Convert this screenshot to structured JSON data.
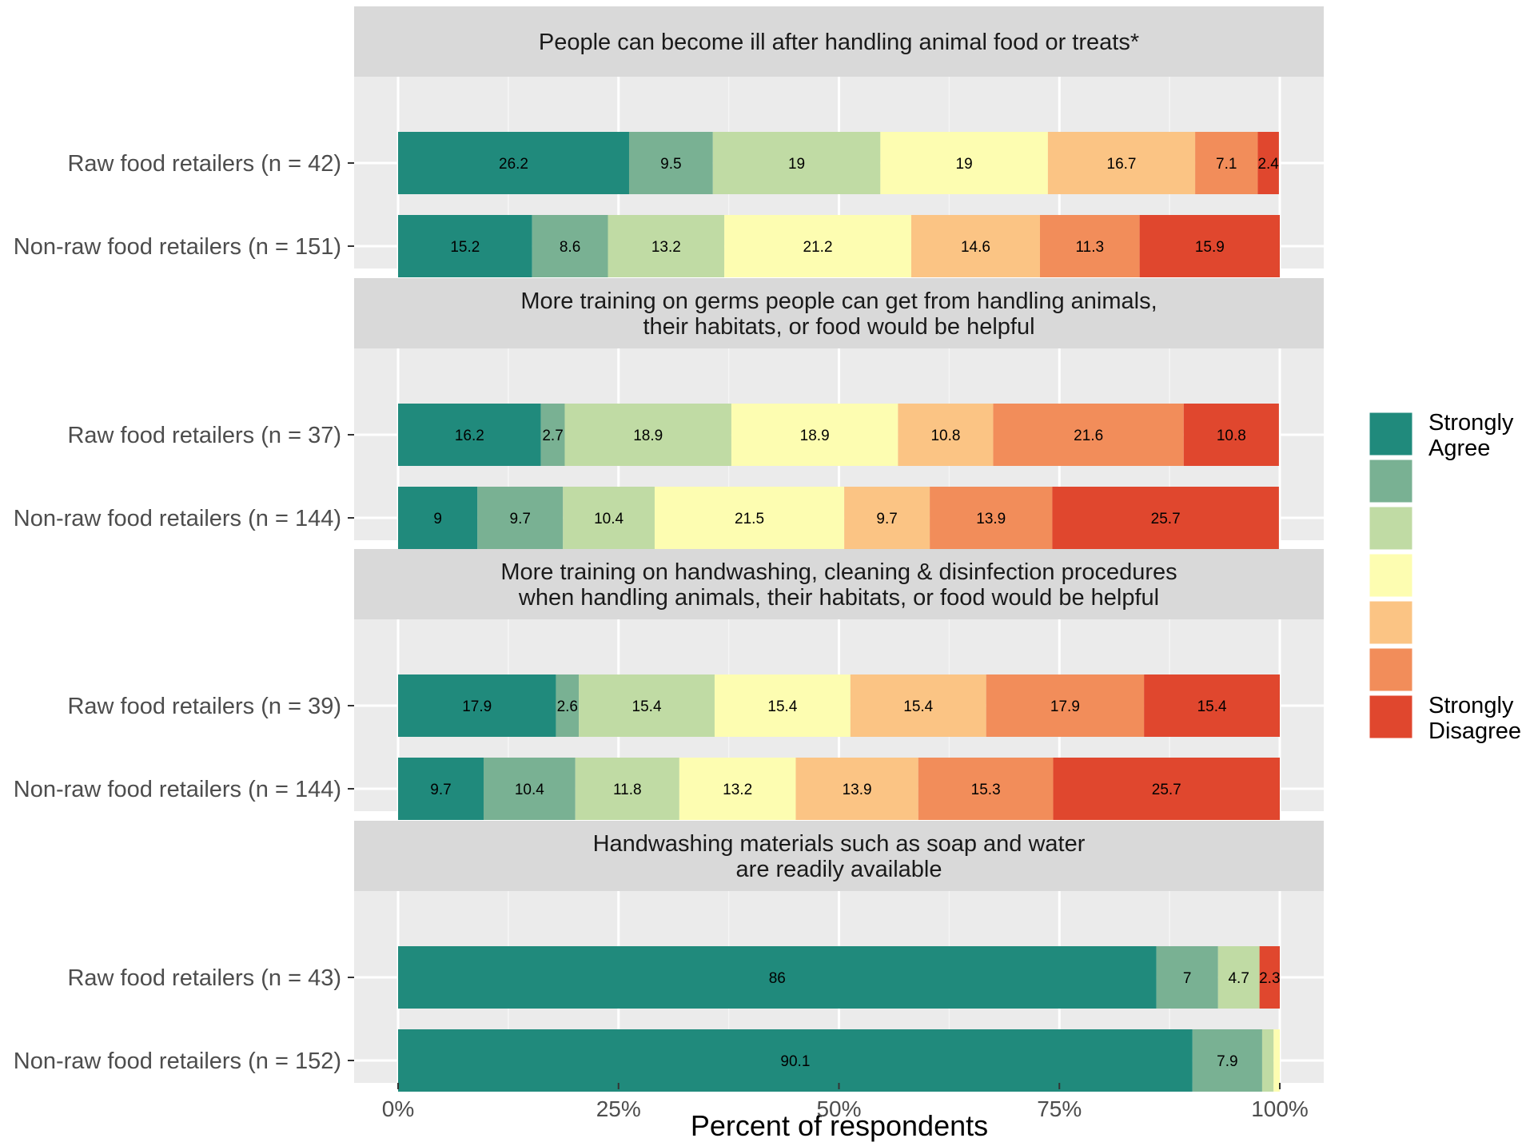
{
  "chart_data": {
    "type": "bar",
    "orientation": "horizontal",
    "stacked": true,
    "xlabel": "Percent of respondents",
    "xlim": [
      0,
      100
    ],
    "x_ticks": [
      0,
      25,
      50,
      75,
      100
    ],
    "x_tick_labels": [
      "0%",
      "25%",
      "50%",
      "75%",
      "100%"
    ],
    "grid": true,
    "legend_position": "right",
    "legend": {
      "top_label": [
        "Strongly",
        "Agree"
      ],
      "bottom_label": [
        "Strongly",
        "Disagree"
      ],
      "levels": 7
    },
    "colors": [
      "#208a7c",
      "#79b193",
      "#c0dba4",
      "#fdfdb1",
      "#fbc484",
      "#f28d5a",
      "#e0472e"
    ],
    "panels": [
      {
        "title": [
          "People can become ill after handling animal food or treats*"
        ],
        "rows": [
          {
            "label": "Raw food retailers (n = 42)",
            "values": [
              26.2,
              9.5,
              19,
              19,
              16.7,
              7.1,
              2.4
            ]
          },
          {
            "label": "Non-raw food retailers (n = 151)",
            "values": [
              15.2,
              8.6,
              13.2,
              21.2,
              14.6,
              11.3,
              15.9
            ]
          }
        ]
      },
      {
        "title": [
          "More training on germs people can get from handling animals,",
          "their habitats, or food would be helpful"
        ],
        "rows": [
          {
            "label": "Raw food retailers (n = 37)",
            "values": [
              16.2,
              2.7,
              18.9,
              18.9,
              10.8,
              21.6,
              10.8
            ]
          },
          {
            "label": "Non-raw food retailers (n = 144)",
            "values": [
              9,
              9.7,
              10.4,
              21.5,
              9.7,
              13.9,
              25.7
            ]
          }
        ]
      },
      {
        "title": [
          "More training on handwashing, cleaning & disinfection procedures",
          "when handling animals, their habitats, or food would be helpful"
        ],
        "rows": [
          {
            "label": "Raw food retailers (n = 39)",
            "values": [
              17.9,
              2.6,
              15.4,
              15.4,
              15.4,
              17.9,
              15.4
            ]
          },
          {
            "label": "Non-raw food retailers (n = 144)",
            "values": [
              9.7,
              10.4,
              11.8,
              13.2,
              13.9,
              15.3,
              25.7
            ]
          }
        ]
      },
      {
        "title": [
          "Handwashing materials such as soap and water",
          "are readily available"
        ],
        "rows": [
          {
            "label": "Raw food retailers (n = 43)",
            "values": [
              86,
              7,
              4.7,
              0,
              0,
              0,
              2.3
            ]
          },
          {
            "label": "Non-raw food retailers (n = 152)",
            "values": [
              90.1,
              7.9,
              1.3,
              0.7,
              0,
              0,
              0
            ]
          }
        ]
      }
    ]
  }
}
